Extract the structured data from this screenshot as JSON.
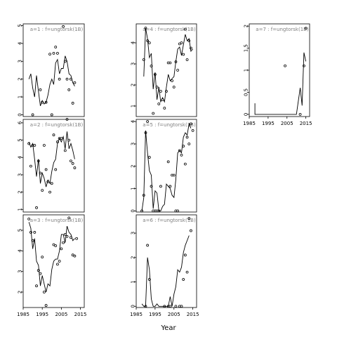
{
  "xlabel": "Year",
  "chart_data": [
    {
      "type": "scatter",
      "label": "a=1 : f=ungtorsk(1B)",
      "xlim": [
        1985,
        2017
      ],
      "ylim": [
        -0.1,
        5.1
      ],
      "yticks": [
        0,
        1,
        2,
        3,
        4,
        5
      ],
      "xticks": [],
      "points": [
        [
          1990,
          0.0
        ],
        [
          1994,
          1.4
        ],
        [
          1995,
          0.7
        ],
        [
          1997,
          0.7
        ],
        [
          1999,
          3.4
        ],
        [
          2000,
          0.0
        ],
        [
          2001,
          3.45
        ],
        [
          2002,
          3.8
        ],
        [
          2003,
          3.45
        ],
        [
          2004,
          2.0
        ],
        [
          2006,
          4.95
        ],
        [
          2007,
          3.0
        ],
        [
          2008,
          2.0
        ],
        [
          2009,
          1.4
        ],
        [
          2010,
          2.0
        ],
        [
          2011,
          0.65
        ],
        [
          2012,
          1.8
        ]
      ],
      "line": [
        [
          1988,
          2.0
        ],
        [
          1989,
          2.3
        ],
        [
          1990,
          1.5
        ],
        [
          1991,
          1.0
        ],
        [
          1992,
          2.2
        ],
        [
          1993,
          1.3
        ],
        [
          1994,
          0.5
        ],
        [
          1995,
          0.8
        ],
        [
          1996,
          0.6
        ],
        [
          1997,
          0.7
        ],
        [
          1998,
          1.1
        ],
        [
          1999,
          1.7
        ],
        [
          2000,
          2.0
        ],
        [
          2001,
          1.7
        ],
        [
          2002,
          2.9
        ],
        [
          2003,
          3.1
        ],
        [
          2004,
          2.3
        ],
        [
          2005,
          2.6
        ],
        [
          2006,
          2.6
        ],
        [
          2007,
          3.3
        ],
        [
          2008,
          3.0
        ],
        [
          2009,
          2.3
        ],
        [
          2010,
          2.2
        ],
        [
          2011,
          1.8
        ],
        [
          2012,
          1.6
        ]
      ]
    },
    {
      "type": "scatter",
      "label": "a=4 : f=ungtorsk(1B)",
      "xlim": [
        1985,
        2017
      ],
      "ylim": [
        0.5,
        4.9
      ],
      "yticks": [
        1,
        2,
        3,
        4
      ],
      "xticks": [],
      "points": [
        [
          1989,
          3.2
        ],
        [
          1990,
          4.7
        ],
        [
          1991,
          4.1
        ],
        [
          1992,
          4.0
        ],
        [
          1993,
          2.9
        ],
        [
          1994,
          0.65
        ],
        [
          1995,
          2.5
        ],
        [
          1996,
          1.9
        ],
        [
          1997,
          1.1
        ],
        [
          1998,
          1.7
        ],
        [
          1999,
          1.3
        ],
        [
          2000,
          0.9
        ],
        [
          2001,
          1.7
        ],
        [
          2002,
          3.05
        ],
        [
          2003,
          3.05
        ],
        [
          2004,
          2.2
        ],
        [
          2005,
          1.9
        ],
        [
          2006,
          3.1
        ],
        [
          2007,
          2.7
        ],
        [
          2008,
          3.95
        ],
        [
          2009,
          4.0
        ],
        [
          2010,
          3.45
        ],
        [
          2011,
          4.65
        ],
        [
          2012,
          3.2
        ],
        [
          2013,
          4.1
        ],
        [
          2014,
          3.75
        ]
      ],
      "line": [
        [
          1989,
          2.4
        ],
        [
          1990,
          4.7
        ],
        [
          1991,
          4.2
        ],
        [
          1992,
          3.3
        ],
        [
          1993,
          3.5
        ],
        [
          1994,
          1.8
        ],
        [
          1995,
          2.6
        ],
        [
          1996,
          1.3
        ],
        [
          1997,
          1.9
        ],
        [
          1998,
          1.2
        ],
        [
          1999,
          1.4
        ],
        [
          2000,
          1.2
        ],
        [
          2001,
          1.9
        ],
        [
          2002,
          2.5
        ],
        [
          2003,
          2.2
        ],
        [
          2004,
          2.3
        ],
        [
          2005,
          2.4
        ],
        [
          2006,
          3.1
        ],
        [
          2007,
          3.7
        ],
        [
          2008,
          3.8
        ],
        [
          2009,
          3.4
        ],
        [
          2010,
          3.9
        ],
        [
          2011,
          4.4
        ],
        [
          2012,
          4.1
        ],
        [
          2013,
          4.2
        ],
        [
          2014,
          3.6
        ],
        [
          2015,
          3.7
        ]
      ]
    },
    {
      "type": "scatter",
      "label": "a=7 : f=ungtorsk(1B)",
      "xlim": [
        1985,
        2017
      ],
      "ylim": [
        -0.05,
        2.05
      ],
      "yticks": [
        0,
        0.5,
        1.0,
        1.5,
        2.0
      ],
      "xticks": [
        1985,
        1995,
        2005,
        2015
      ],
      "points": [
        [
          2004,
          1.1
        ],
        [
          2012,
          0.0
        ],
        [
          2014,
          1.1
        ],
        [
          2015,
          1.95
        ]
      ],
      "line": [
        [
          1988,
          0.25
        ],
        [
          1988,
          0.0
        ],
        [
          2010,
          0.0
        ],
        [
          2011,
          0.3
        ],
        [
          2012,
          0.6
        ],
        [
          2013,
          0.2
        ],
        [
          2014,
          1.4
        ],
        [
          2015,
          1.2
        ]
      ]
    },
    {
      "type": "scatter",
      "label": "a=2 : f=ungtorsk(1B)",
      "xlim": [
        1985,
        2017
      ],
      "ylim": [
        0.85,
        6.2
      ],
      "yticks": [
        1,
        2,
        3,
        4,
        5,
        6
      ],
      "xticks": [],
      "points": [
        [
          1988,
          4.8
        ],
        [
          1989,
          3.5
        ],
        [
          1990,
          4.7
        ],
        [
          1991,
          4.7
        ],
        [
          1992,
          1.1
        ],
        [
          1993,
          3.8
        ],
        [
          1994,
          3.1
        ],
        [
          1995,
          2.1
        ],
        [
          1996,
          4.7
        ],
        [
          1997,
          3.3
        ],
        [
          1998,
          2.6
        ],
        [
          1999,
          2.0
        ],
        [
          2000,
          2.5
        ],
        [
          2001,
          5.3
        ],
        [
          2002,
          3.3
        ],
        [
          2003,
          4.9
        ],
        [
          2004,
          5.1
        ],
        [
          2005,
          5.1
        ],
        [
          2007,
          4.4
        ],
        [
          2008,
          6.2
        ],
        [
          2009,
          5.0
        ],
        [
          2010,
          3.8
        ],
        [
          2011,
          3.65
        ],
        [
          2012,
          3.4
        ]
      ],
      "line": [
        [
          1988,
          4.9
        ],
        [
          1989,
          4.6
        ],
        [
          1990,
          4.8
        ],
        [
          1991,
          3.9
        ],
        [
          1992,
          2.9
        ],
        [
          1993,
          3.9
        ],
        [
          1994,
          2.5
        ],
        [
          1995,
          3.1
        ],
        [
          1996,
          2.8
        ],
        [
          1997,
          2.3
        ],
        [
          1998,
          2.7
        ],
        [
          1999,
          2.5
        ],
        [
          2000,
          3.2
        ],
        [
          2001,
          3.7
        ],
        [
          2002,
          3.9
        ],
        [
          2003,
          4.8
        ],
        [
          2004,
          5.1
        ],
        [
          2005,
          4.9
        ],
        [
          2006,
          5.2
        ],
        [
          2007,
          4.5
        ],
        [
          2008,
          5.5
        ],
        [
          2009,
          4.5
        ],
        [
          2010,
          4.8
        ],
        [
          2011,
          4.4
        ],
        [
          2012,
          3.9
        ]
      ]
    },
    {
      "type": "scatter",
      "label": "a=5 : f=ungtorsk(1B)",
      "xlim": [
        1985,
        2017
      ],
      "ylim": [
        -0.05,
        4.1
      ],
      "yticks": [
        0,
        1,
        2,
        3,
        4
      ],
      "xticks": [],
      "points": [
        [
          1988,
          0.0
        ],
        [
          1989,
          0.7
        ],
        [
          1990,
          3.5
        ],
        [
          1991,
          4.0
        ],
        [
          1992,
          2.4
        ],
        [
          1993,
          1.1
        ],
        [
          1994,
          0.0
        ],
        [
          1995,
          0.0
        ],
        [
          1996,
          0.0
        ],
        [
          1997,
          0.0
        ],
        [
          1998,
          1.1
        ],
        [
          2002,
          2.2
        ],
        [
          2003,
          1.1
        ],
        [
          2004,
          1.6
        ],
        [
          2005,
          1.6
        ],
        [
          2006,
          0.0
        ],
        [
          2007,
          0.0
        ],
        [
          2008,
          2.7
        ],
        [
          2009,
          2.5
        ],
        [
          2010,
          2.9
        ],
        [
          2011,
          2.1
        ],
        [
          2012,
          3.3
        ],
        [
          2013,
          3.0
        ],
        [
          2014,
          3.9
        ],
        [
          2015,
          3.6
        ]
      ],
      "line": [
        [
          1988,
          0.0
        ],
        [
          1989,
          0.6
        ],
        [
          1990,
          3.6
        ],
        [
          1991,
          2.6
        ],
        [
          1992,
          1.8
        ],
        [
          1993,
          1.6
        ],
        [
          1994,
          0.1
        ],
        [
          1995,
          0.9
        ],
        [
          1996,
          0.8
        ],
        [
          1997,
          0.0
        ],
        [
          1998,
          0.0
        ],
        [
          1999,
          0.2
        ],
        [
          2000,
          0.3
        ],
        [
          2001,
          1.2
        ],
        [
          2002,
          1.1
        ],
        [
          2003,
          1.0
        ],
        [
          2004,
          0.7
        ],
        [
          2005,
          0.6
        ],
        [
          2006,
          1.4
        ],
        [
          2007,
          2.6
        ],
        [
          2008,
          2.7
        ],
        [
          2009,
          2.6
        ],
        [
          2010,
          3.3
        ],
        [
          2011,
          3.5
        ],
        [
          2012,
          3.4
        ],
        [
          2013,
          3.9
        ],
        [
          2014,
          3.7
        ]
      ]
    },
    {
      "type": "scatter",
      "label": "a=3 : f=ungtorsk(1B)",
      "xlim": [
        1985,
        2017
      ],
      "ylim": [
        1.25,
        5.75
      ],
      "yticks": [
        2,
        3,
        4,
        5
      ],
      "xticks": [
        1985,
        1995,
        2005,
        2015
      ],
      "points": [
        [
          1988,
          5.55
        ],
        [
          1989,
          4.9
        ],
        [
          1990,
          4.5
        ],
        [
          1991,
          4.9
        ],
        [
          1992,
          2.3
        ],
        [
          1993,
          3.05
        ],
        [
          1994,
          2.9
        ],
        [
          1995,
          3.7
        ],
        [
          1996,
          2.0
        ],
        [
          1997,
          1.35
        ],
        [
          2001,
          4.3
        ],
        [
          2002,
          4.25
        ],
        [
          2003,
          3.35
        ],
        [
          2004,
          3.5
        ],
        [
          2005,
          4.1
        ],
        [
          2006,
          4.4
        ],
        [
          2007,
          4.8
        ],
        [
          2008,
          4.7
        ],
        [
          2009,
          5.6
        ],
        [
          2010,
          4.65
        ],
        [
          2011,
          3.8
        ],
        [
          2012,
          3.75
        ],
        [
          2013,
          4.6
        ]
      ],
      "line": [
        [
          1988,
          5.4
        ],
        [
          1989,
          5.1
        ],
        [
          1990,
          4.1
        ],
        [
          1991,
          4.6
        ],
        [
          1992,
          3.5
        ],
        [
          1993,
          3.3
        ],
        [
          1994,
          2.3
        ],
        [
          1995,
          2.8
        ],
        [
          1996,
          2.4
        ],
        [
          1997,
          2.0
        ],
        [
          1998,
          2.4
        ],
        [
          1999,
          2.3
        ],
        [
          2000,
          3.1
        ],
        [
          2001,
          3.5
        ],
        [
          2002,
          3.6
        ],
        [
          2003,
          3.6
        ],
        [
          2004,
          4.0
        ],
        [
          2005,
          4.8
        ],
        [
          2006,
          4.8
        ],
        [
          2007,
          4.4
        ],
        [
          2008,
          5.2
        ],
        [
          2009,
          4.9
        ],
        [
          2010,
          4.8
        ],
        [
          2011,
          4.5
        ],
        [
          2012,
          4.6
        ]
      ]
    },
    {
      "type": "scatter",
      "label": "a=6 : f=ungtorsk(1B)",
      "xlim": [
        1985,
        2017
      ],
      "ylim": [
        -0.05,
        3.75
      ],
      "yticks": [
        0,
        1,
        2,
        3
      ],
      "xticks": [
        1985,
        1995,
        2005,
        2015
      ],
      "points": [
        [
          1990,
          0.0
        ],
        [
          1991,
          2.5
        ],
        [
          1992,
          1.1
        ],
        [
          2000,
          0.0
        ],
        [
          2002,
          0.0
        ],
        [
          2003,
          0.0
        ],
        [
          2006,
          0.0
        ],
        [
          2008,
          0.0
        ],
        [
          2009,
          0.0
        ],
        [
          2010,
          1.1
        ],
        [
          2011,
          2.1
        ],
        [
          2012,
          1.4
        ],
        [
          2013,
          3.6
        ],
        [
          2014,
          3.1
        ]
      ],
      "line": [
        [
          1988,
          0.1
        ],
        [
          1989,
          0.0
        ],
        [
          1990,
          0.0
        ],
        [
          1991,
          2.0
        ],
        [
          1992,
          1.5
        ],
        [
          1993,
          0.3
        ],
        [
          1994,
          0.0
        ],
        [
          1995,
          0.0
        ],
        [
          1996,
          0.1
        ],
        [
          1997,
          0.0
        ],
        [
          1998,
          0.0
        ],
        [
          1999,
          0.0
        ],
        [
          2000,
          0.0
        ],
        [
          2001,
          0.0
        ],
        [
          2002,
          0.0
        ],
        [
          2003,
          0.4
        ],
        [
          2004,
          0.0
        ],
        [
          2005,
          0.5
        ],
        [
          2006,
          0.8
        ],
        [
          2007,
          1.5
        ],
        [
          2008,
          1.4
        ],
        [
          2009,
          1.6
        ],
        [
          2010,
          2.2
        ],
        [
          2011,
          2.5
        ],
        [
          2012,
          2.7
        ],
        [
          2013,
          2.9
        ]
      ]
    }
  ]
}
